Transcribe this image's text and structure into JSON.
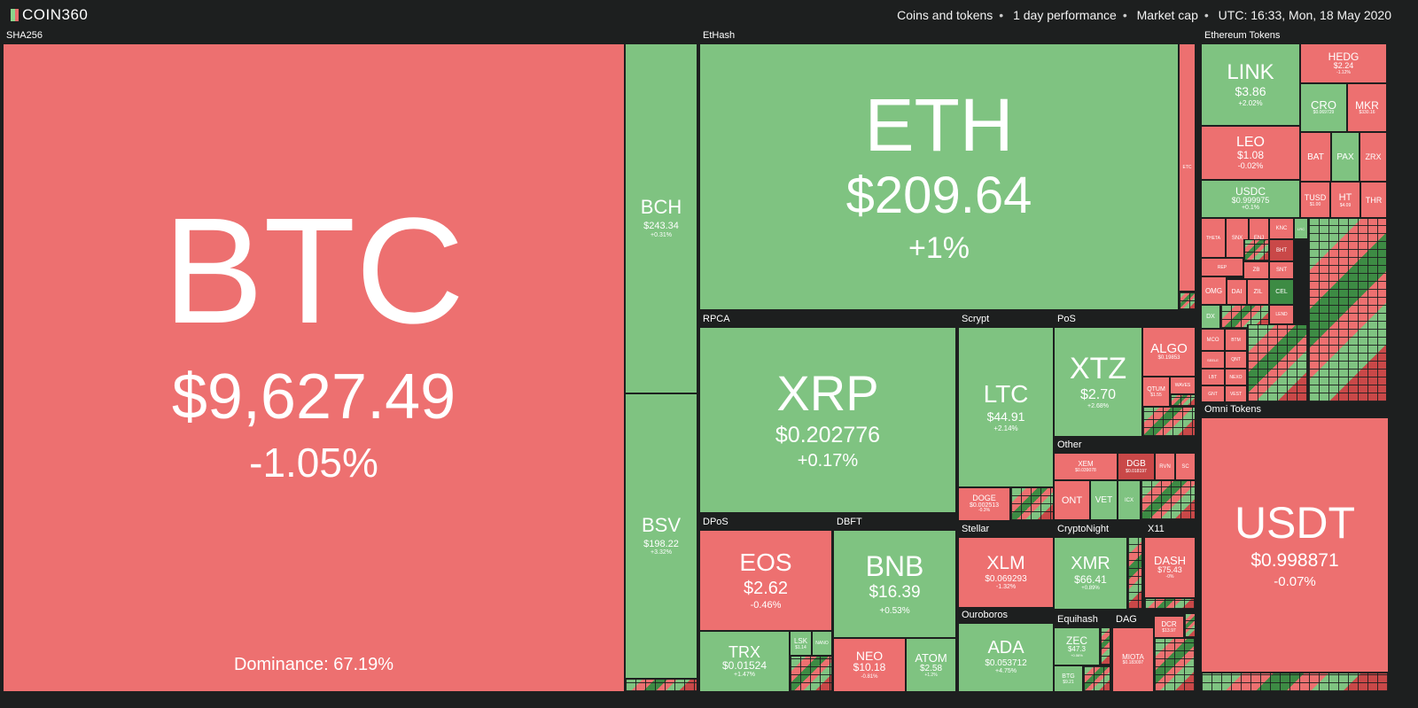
{
  "header": {
    "logo": "COIN360",
    "filters": [
      "Coins and tokens",
      "1 day performance",
      "Market cap"
    ],
    "time": "UTC: 16:33, Mon, 18 May 2020"
  },
  "groups": {
    "sha256": "SHA256",
    "ethash": "EtHash",
    "ethereum_tokens": "Ethereum Tokens",
    "rpca": "RPCA",
    "scrypt": "Scrypt",
    "pos": "PoS",
    "other": "Other",
    "dpos": "DPoS",
    "dbft": "DBFT",
    "stellar": "Stellar",
    "cryptonight": "CryptoNight",
    "x11": "X11",
    "ouroboros": "Ouroboros",
    "equihash": "Equihash",
    "dag": "DAG",
    "omni_tokens": "Omni Tokens"
  },
  "coins": {
    "btc": {
      "symbol": "BTC",
      "price": "$9,627.49",
      "change": "-1.05%",
      "dominance": "Dominance: 67.19%"
    },
    "bch": {
      "symbol": "BCH",
      "price": "$243.34",
      "change": "+0.31%"
    },
    "bsv": {
      "symbol": "BSV",
      "price": "$198.22",
      "change": "+3.32%"
    },
    "eth": {
      "symbol": "ETH",
      "price": "$209.64",
      "change": "+1%"
    },
    "etc": {
      "symbol": "ETC"
    },
    "link": {
      "symbol": "LINK",
      "price": "$3.86",
      "change": "+2.02%"
    },
    "hedg": {
      "symbol": "HEDG",
      "price": "$2.24",
      "change": "-1.12%"
    },
    "cro": {
      "symbol": "CRO",
      "price": "$0.069729"
    },
    "mkr": {
      "symbol": "MKR",
      "price": "$330.16"
    },
    "leo": {
      "symbol": "LEO",
      "price": "$1.08",
      "change": "-0.02%"
    },
    "bat": {
      "symbol": "BAT"
    },
    "pax": {
      "symbol": "PAX"
    },
    "zrx": {
      "symbol": "ZRX"
    },
    "usdc": {
      "symbol": "USDC",
      "price": "$0.999975",
      "change": "+0.1%"
    },
    "tusd": {
      "symbol": "TUSD",
      "price": "$1.00"
    },
    "ht": {
      "symbol": "HT",
      "price": "$4.09"
    },
    "thr": {
      "symbol": "THR"
    },
    "xrp": {
      "symbol": "XRP",
      "price": "$0.202776",
      "change": "+0.17%"
    },
    "ltc": {
      "symbol": "LTC",
      "price": "$44.91",
      "change": "+2.14%"
    },
    "doge": {
      "symbol": "DOGE",
      "price": "$0.002513",
      "change": "-0.3%"
    },
    "xtz": {
      "symbol": "XTZ",
      "price": "$2.70",
      "change": "+2.68%"
    },
    "algo": {
      "symbol": "ALGO",
      "price": "$0.19853"
    },
    "qtum": {
      "symbol": "QTUM",
      "price": "$1.55"
    },
    "waves": {
      "symbol": "WAVES"
    },
    "xem": {
      "symbol": "XEM",
      "price": "$0.039078"
    },
    "dgb": {
      "symbol": "DGB",
      "price": "$0.018197"
    },
    "rvn": {
      "symbol": "RVN"
    },
    "sc": {
      "symbol": "SC"
    },
    "ont": {
      "symbol": "ONT"
    },
    "vet": {
      "symbol": "VET"
    },
    "icx": {
      "symbol": "ICX"
    },
    "eos": {
      "symbol": "EOS",
      "price": "$2.62",
      "change": "-0.46%"
    },
    "trx": {
      "symbol": "TRX",
      "price": "$0.01524",
      "change": "+1.47%"
    },
    "lsk": {
      "symbol": "LSK",
      "price": "$1.14"
    },
    "nano": {
      "symbol": "NANO"
    },
    "bnb": {
      "symbol": "BNB",
      "price": "$16.39",
      "change": "+0.53%"
    },
    "neo": {
      "symbol": "NEO",
      "price": "$10.18",
      "change": "-0.81%"
    },
    "atom": {
      "symbol": "ATOM",
      "price": "$2.58",
      "change": "+1.2%"
    },
    "xlm": {
      "symbol": "XLM",
      "price": "$0.069293",
      "change": "-1.32%"
    },
    "xmr": {
      "symbol": "XMR",
      "price": "$66.41",
      "change": "+0.89%"
    },
    "dash": {
      "symbol": "DASH",
      "price": "$75.43",
      "change": "-0%"
    },
    "ada": {
      "symbol": "ADA",
      "price": "$0.053712",
      "change": "+4.75%"
    },
    "zec": {
      "symbol": "ZEC",
      "price": "$47.3",
      "change": "+0.56%"
    },
    "btg": {
      "symbol": "BTG",
      "price": "$9.21"
    },
    "miota": {
      "symbol": "MIOTA",
      "price": "$0.183097"
    },
    "dcr": {
      "symbol": "DCR",
      "price": "$13.97"
    },
    "usdt": {
      "symbol": "USDT",
      "price": "$0.998871",
      "change": "-0.07%"
    }
  },
  "small_tokens": [
    "THETA",
    "SNX",
    "ENJ",
    "KNC",
    "LRC",
    "REP",
    "BHT",
    "SNT",
    "ZB",
    "OMG",
    "DAI",
    "ZIL",
    "CEL",
    "DX",
    "MCO",
    "SEELE",
    "LEND",
    "BTM",
    "QNT",
    "NEXO",
    "GNT",
    "LBT",
    "VEST"
  ],
  "colors": {
    "up": "#7fc381",
    "down": "#ed7070",
    "strong_down": "#c94848",
    "strong_up": "#3d8b44",
    "background": "#1d1f1f"
  }
}
